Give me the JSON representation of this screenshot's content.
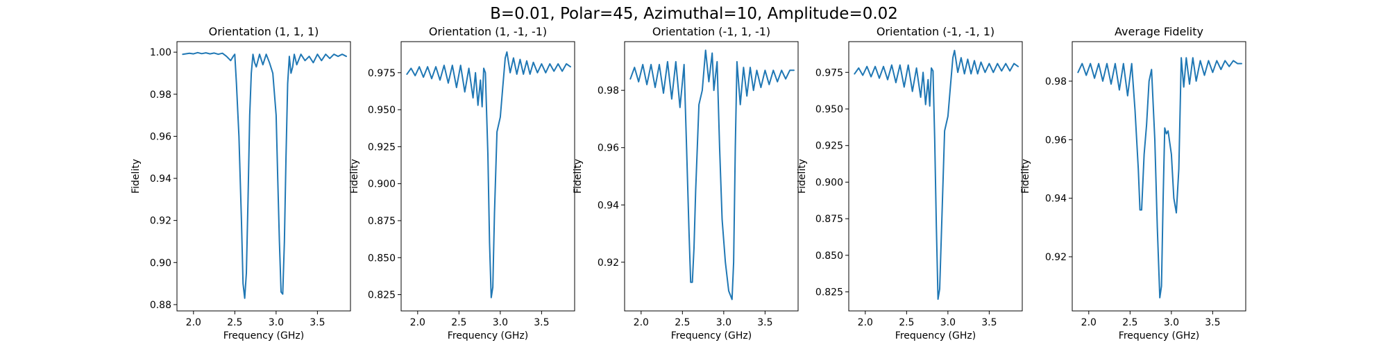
{
  "figure": {
    "suptitle": "B=0.01, Polar=45, Azimuthal=10, Amplitude=0.02",
    "line_color": "#1f77b4"
  },
  "chart_data": [
    {
      "type": "line",
      "title": "Orientation (1, 1, 1)",
      "xlabel": "Frequency (GHz)",
      "ylabel": "Fidelity",
      "xlim": [
        1.8,
        3.9
      ],
      "ylim": [
        0.877,
        1.005
      ],
      "xticks": [
        2.0,
        2.5,
        3.0,
        3.5
      ],
      "xtick_labels": [
        "2.0",
        "2.5",
        "3.0",
        "3.5"
      ],
      "yticks": [
        0.88,
        0.9,
        0.92,
        0.94,
        0.96,
        0.98,
        1.0
      ],
      "ytick_labels": [
        "0.88",
        "0.90",
        "0.92",
        "0.94",
        "0.96",
        "0.98",
        "1.00"
      ],
      "series": [
        {
          "x": [
            1.87,
            1.95,
            2.0,
            2.05,
            2.1,
            2.15,
            2.2,
            2.25,
            2.3,
            2.35,
            2.4,
            2.45,
            2.48,
            2.5,
            2.52,
            2.55,
            2.58,
            2.6,
            2.62,
            2.64,
            2.66,
            2.68,
            2.7,
            2.72,
            2.74,
            2.76,
            2.8,
            2.84,
            2.88,
            2.92,
            2.96,
            3.0,
            3.02,
            3.04,
            3.06,
            3.08,
            3.1,
            3.12,
            3.14,
            3.16,
            3.18,
            3.2,
            3.22,
            3.25,
            3.3,
            3.35,
            3.4,
            3.45,
            3.5,
            3.55,
            3.6,
            3.65,
            3.7,
            3.75,
            3.8,
            3.85
          ],
          "y": [
            0.999,
            0.9995,
            0.9992,
            0.9998,
            0.9993,
            0.9997,
            0.9992,
            0.9996,
            0.999,
            0.9995,
            0.998,
            0.996,
            0.998,
            0.999,
            0.985,
            0.96,
            0.92,
            0.89,
            0.883,
            0.895,
            0.93,
            0.97,
            0.99,
            0.999,
            0.995,
            0.993,
            0.999,
            0.994,
            0.999,
            0.995,
            0.99,
            0.97,
            0.94,
            0.91,
            0.886,
            0.885,
            0.91,
            0.95,
            0.985,
            0.998,
            0.99,
            0.993,
            0.999,
            0.994,
            0.999,
            0.996,
            0.998,
            0.995,
            0.999,
            0.996,
            0.999,
            0.997,
            0.999,
            0.998,
            0.999,
            0.998
          ]
        }
      ]
    },
    {
      "type": "line",
      "title": "Orientation (1, -1, -1)",
      "xlabel": "Frequency (GHz)",
      "ylabel": "Fidelity",
      "xlim": [
        1.8,
        3.9
      ],
      "ylim": [
        0.814,
        0.996
      ],
      "xticks": [
        2.0,
        2.5,
        3.0,
        3.5
      ],
      "xtick_labels": [
        "2.0",
        "2.5",
        "3.0",
        "3.5"
      ],
      "yticks": [
        0.825,
        0.85,
        0.875,
        0.9,
        0.925,
        0.95,
        0.975
      ],
      "ytick_labels": [
        "0.825",
        "0.850",
        "0.875",
        "0.900",
        "0.925",
        "0.950",
        "0.975"
      ],
      "series": [
        {
          "x": [
            1.87,
            1.92,
            1.97,
            2.02,
            2.07,
            2.12,
            2.17,
            2.22,
            2.27,
            2.32,
            2.37,
            2.42,
            2.47,
            2.52,
            2.57,
            2.62,
            2.67,
            2.7,
            2.73,
            2.76,
            2.78,
            2.8,
            2.82,
            2.85,
            2.87,
            2.89,
            2.91,
            2.93,
            2.96,
            3.0,
            3.03,
            3.06,
            3.08,
            3.12,
            3.16,
            3.2,
            3.24,
            3.28,
            3.32,
            3.36,
            3.4,
            3.45,
            3.5,
            3.55,
            3.6,
            3.65,
            3.7,
            3.75,
            3.8,
            3.85
          ],
          "y": [
            0.974,
            0.978,
            0.973,
            0.979,
            0.972,
            0.979,
            0.971,
            0.979,
            0.97,
            0.98,
            0.968,
            0.98,
            0.965,
            0.98,
            0.962,
            0.978,
            0.958,
            0.975,
            0.953,
            0.97,
            0.952,
            0.978,
            0.975,
            0.92,
            0.86,
            0.823,
            0.83,
            0.88,
            0.935,
            0.945,
            0.965,
            0.985,
            0.989,
            0.975,
            0.985,
            0.974,
            0.984,
            0.974,
            0.983,
            0.974,
            0.982,
            0.975,
            0.981,
            0.975,
            0.981,
            0.976,
            0.981,
            0.976,
            0.981,
            0.979
          ]
        }
      ]
    },
    {
      "type": "line",
      "title": "Orientation (-1, 1, -1)",
      "xlabel": "Frequency (GHz)",
      "ylabel": "Fidelity",
      "xlim": [
        1.8,
        3.9
      ],
      "ylim": [
        0.903,
        0.997
      ],
      "xticks": [
        2.0,
        2.5,
        3.0,
        3.5
      ],
      "xtick_labels": [
        "2.0",
        "2.5",
        "3.0",
        "3.5"
      ],
      "yticks": [
        0.92,
        0.94,
        0.96,
        0.98
      ],
      "ytick_labels": [
        "0.92",
        "0.94",
        "0.96",
        "0.98"
      ],
      "series": [
        {
          "x": [
            1.87,
            1.92,
            1.97,
            2.02,
            2.07,
            2.12,
            2.17,
            2.22,
            2.27,
            2.32,
            2.37,
            2.42,
            2.47,
            2.52,
            2.55,
            2.58,
            2.6,
            2.62,
            2.64,
            2.66,
            2.7,
            2.74,
            2.78,
            2.82,
            2.86,
            2.88,
            2.92,
            2.95,
            2.98,
            3.02,
            3.06,
            3.1,
            3.12,
            3.14,
            3.16,
            3.2,
            3.24,
            3.28,
            3.32,
            3.36,
            3.4,
            3.45,
            3.5,
            3.55,
            3.6,
            3.65,
            3.7,
            3.75,
            3.8,
            3.85
          ],
          "y": [
            0.984,
            0.988,
            0.983,
            0.989,
            0.982,
            0.989,
            0.981,
            0.989,
            0.979,
            0.99,
            0.977,
            0.99,
            0.974,
            0.989,
            0.96,
            0.93,
            0.913,
            0.913,
            0.925,
            0.945,
            0.975,
            0.98,
            0.994,
            0.983,
            0.993,
            0.98,
            0.99,
            0.96,
            0.935,
            0.92,
            0.91,
            0.907,
            0.92,
            0.96,
            0.99,
            0.975,
            0.988,
            0.978,
            0.988,
            0.98,
            0.987,
            0.981,
            0.987,
            0.982,
            0.987,
            0.983,
            0.987,
            0.984,
            0.987,
            0.987
          ]
        }
      ]
    },
    {
      "type": "line",
      "title": "Orientation (-1, -1, 1)",
      "xlabel": "Frequency (GHz)",
      "ylabel": "Fidelity",
      "xlim": [
        1.8,
        3.9
      ],
      "ylim": [
        0.812,
        0.996
      ],
      "xticks": [
        2.0,
        2.5,
        3.0,
        3.5
      ],
      "xtick_labels": [
        "2.0",
        "2.5",
        "3.0",
        "3.5"
      ],
      "yticks": [
        0.825,
        0.85,
        0.875,
        0.9,
        0.925,
        0.95,
        0.975
      ],
      "ytick_labels": [
        "0.825",
        "0.850",
        "0.875",
        "0.900",
        "0.925",
        "0.950",
        "0.975"
      ],
      "series": [
        {
          "x": [
            1.87,
            1.92,
            1.97,
            2.02,
            2.07,
            2.12,
            2.17,
            2.22,
            2.27,
            2.32,
            2.37,
            2.42,
            2.47,
            2.52,
            2.57,
            2.62,
            2.67,
            2.7,
            2.73,
            2.76,
            2.78,
            2.8,
            2.82,
            2.84,
            2.86,
            2.88,
            2.9,
            2.93,
            2.96,
            3.0,
            3.03,
            3.06,
            3.08,
            3.12,
            3.16,
            3.2,
            3.24,
            3.28,
            3.32,
            3.36,
            3.4,
            3.45,
            3.5,
            3.55,
            3.6,
            3.65,
            3.7,
            3.75,
            3.8,
            3.85
          ],
          "y": [
            0.974,
            0.978,
            0.973,
            0.979,
            0.972,
            0.979,
            0.971,
            0.979,
            0.97,
            0.98,
            0.968,
            0.98,
            0.965,
            0.98,
            0.962,
            0.978,
            0.958,
            0.975,
            0.953,
            0.97,
            0.952,
            0.978,
            0.976,
            0.93,
            0.87,
            0.82,
            0.827,
            0.88,
            0.935,
            0.945,
            0.965,
            0.985,
            0.99,
            0.975,
            0.985,
            0.974,
            0.984,
            0.974,
            0.983,
            0.974,
            0.982,
            0.975,
            0.981,
            0.975,
            0.981,
            0.976,
            0.981,
            0.976,
            0.981,
            0.979
          ]
        }
      ]
    },
    {
      "type": "line",
      "title": "Average Fidelity",
      "xlabel": "Frequency (GHz)",
      "ylabel": "Fidelity",
      "xlim": [
        1.8,
        3.9
      ],
      "ylim": [
        0.9015,
        0.9935
      ],
      "xticks": [
        2.0,
        2.5,
        3.0,
        3.5
      ],
      "xtick_labels": [
        "2.0",
        "2.5",
        "3.0",
        "3.5"
      ],
      "yticks": [
        0.92,
        0.94,
        0.96,
        0.98
      ],
      "ytick_labels": [
        "0.92",
        "0.94",
        "0.96",
        "0.98"
      ],
      "series": [
        {
          "x": [
            1.87,
            1.92,
            1.97,
            2.02,
            2.07,
            2.12,
            2.17,
            2.22,
            2.27,
            2.32,
            2.37,
            2.42,
            2.47,
            2.52,
            2.56,
            2.6,
            2.62,
            2.64,
            2.67,
            2.7,
            2.73,
            2.76,
            2.8,
            2.83,
            2.86,
            2.88,
            2.9,
            2.92,
            2.94,
            2.96,
            3.0,
            3.03,
            3.06,
            3.09,
            3.12,
            3.15,
            3.18,
            3.22,
            3.26,
            3.3,
            3.35,
            3.4,
            3.45,
            3.5,
            3.55,
            3.6,
            3.65,
            3.7,
            3.75,
            3.8,
            3.85
          ],
          "y": [
            0.983,
            0.986,
            0.982,
            0.986,
            0.981,
            0.986,
            0.98,
            0.986,
            0.979,
            0.986,
            0.977,
            0.986,
            0.975,
            0.986,
            0.97,
            0.95,
            0.936,
            0.936,
            0.955,
            0.965,
            0.98,
            0.984,
            0.96,
            0.93,
            0.906,
            0.91,
            0.94,
            0.964,
            0.962,
            0.963,
            0.955,
            0.94,
            0.935,
            0.95,
            0.988,
            0.978,
            0.988,
            0.979,
            0.988,
            0.98,
            0.987,
            0.982,
            0.987,
            0.983,
            0.987,
            0.984,
            0.987,
            0.985,
            0.987,
            0.986,
            0.986
          ]
        }
      ]
    }
  ]
}
